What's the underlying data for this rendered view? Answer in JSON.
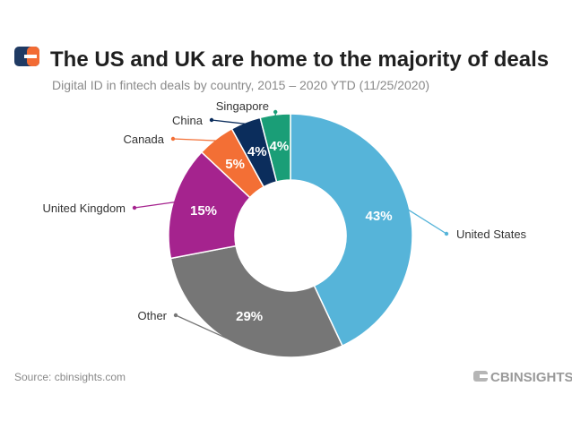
{
  "title": "The US and UK are home to the majority of deals",
  "subtitle": "Digital ID in fintech deals by country, 2015 – 2020 YTD (11/25/2020)",
  "source": "Source: cbinsights.com",
  "brand": {
    "logo_icon": "cb-insights-logo-icon",
    "colors": {
      "navy": "#1f3a63",
      "orange": "#f26b34"
    },
    "wordmark": "CBINSIGHTS"
  },
  "chart_data": {
    "type": "pie",
    "variant": "donut",
    "categories": [
      "United States",
      "Other",
      "United Kingdom",
      "Canada",
      "China",
      "Singapore"
    ],
    "values": [
      43,
      29,
      15,
      5,
      4,
      4
    ],
    "value_labels": [
      "43%",
      "29%",
      "15%",
      "5%",
      "4%",
      "4%"
    ],
    "colors": [
      "#56b4d9",
      "#767676",
      "#a5238e",
      "#f36f35",
      "#0b2d5c",
      "#1a9e77"
    ],
    "start": "top, clockwise",
    "legend": "none (direct labels with leader lines)"
  }
}
